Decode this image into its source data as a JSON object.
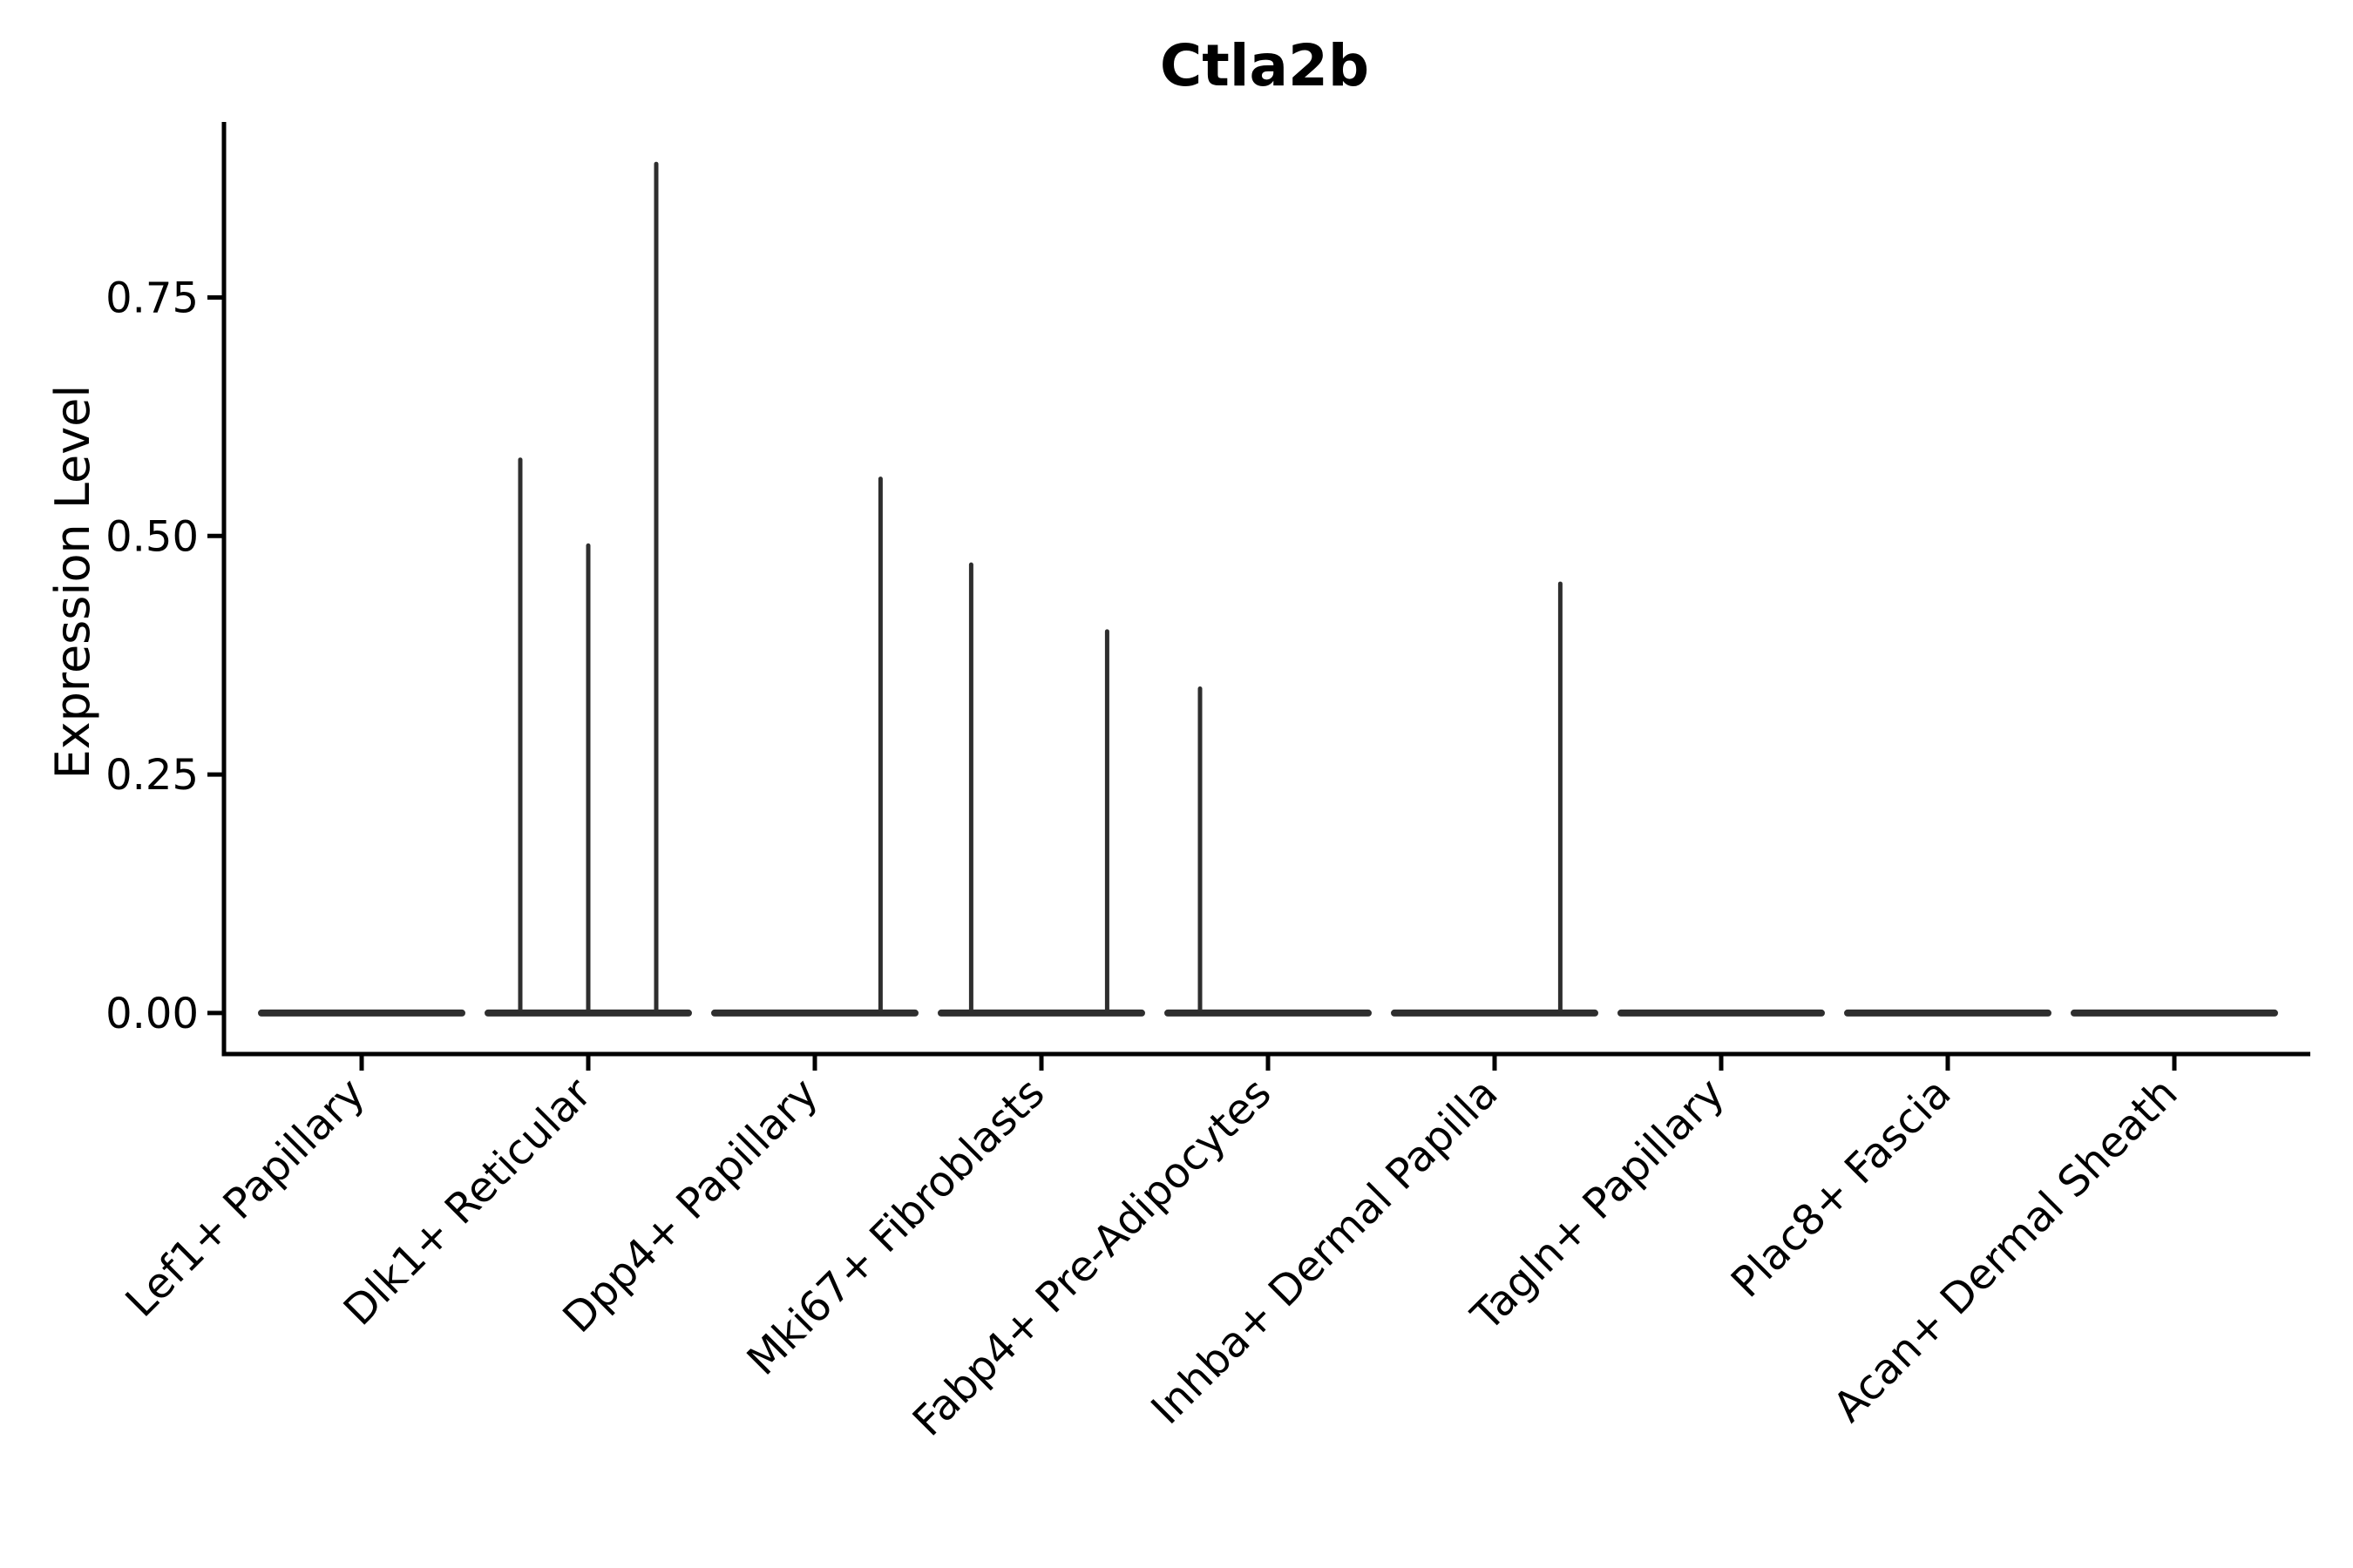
{
  "title": "Ctla2b",
  "chart_data": {
    "type": "violin",
    "title": "Ctla2b",
    "xlabel": "",
    "ylabel": "Expression Level",
    "legend": null,
    "grid": false,
    "ytick_labels": [
      "0.00",
      "0.25",
      "0.50",
      "0.75"
    ],
    "ytick_values": [
      0,
      0.25,
      0.5,
      0.75
    ],
    "ylim": [
      -0.043,
      0.934
    ],
    "baseline_value": 0,
    "violin_body_halfwidth_frac": 0.46,
    "violins": [
      {
        "category": "Lef1+ Papillary",
        "spikes": []
      },
      {
        "category": "Dlk1+ Reticular",
        "spikes": [
          {
            "offset_frac": -0.3,
            "peak": 0.58
          },
          {
            "offset_frac": 0.0,
            "peak": 0.49
          },
          {
            "offset_frac": 0.3,
            "peak": 0.89
          }
        ]
      },
      {
        "category": "Dpp4+ Papillary",
        "spikes": [
          {
            "offset_frac": 0.29,
            "peak": 0.56
          }
        ]
      },
      {
        "category": "Mki67+ Fibroblasts",
        "spikes": [
          {
            "offset_frac": -0.31,
            "peak": 0.47
          },
          {
            "offset_frac": 0.29,
            "peak": 0.4
          }
        ]
      },
      {
        "category": "Fabp4+ Pre-Adipocytes",
        "spikes": [
          {
            "offset_frac": -0.3,
            "peak": 0.34
          }
        ]
      },
      {
        "category": "Inhba+ Dermal Papilla",
        "spikes": [
          {
            "offset_frac": 0.29,
            "peak": 0.45
          }
        ]
      },
      {
        "category": "Tagln+ Papillary",
        "spikes": []
      },
      {
        "category": "Plac8+ Fascia",
        "spikes": []
      },
      {
        "category": "Acan+ Dermal Sheath",
        "spikes": []
      }
    ],
    "colors": {
      "violin": "#2e2e2e",
      "axis": "#000000",
      "text": "#000000",
      "background": "#ffffff"
    }
  }
}
